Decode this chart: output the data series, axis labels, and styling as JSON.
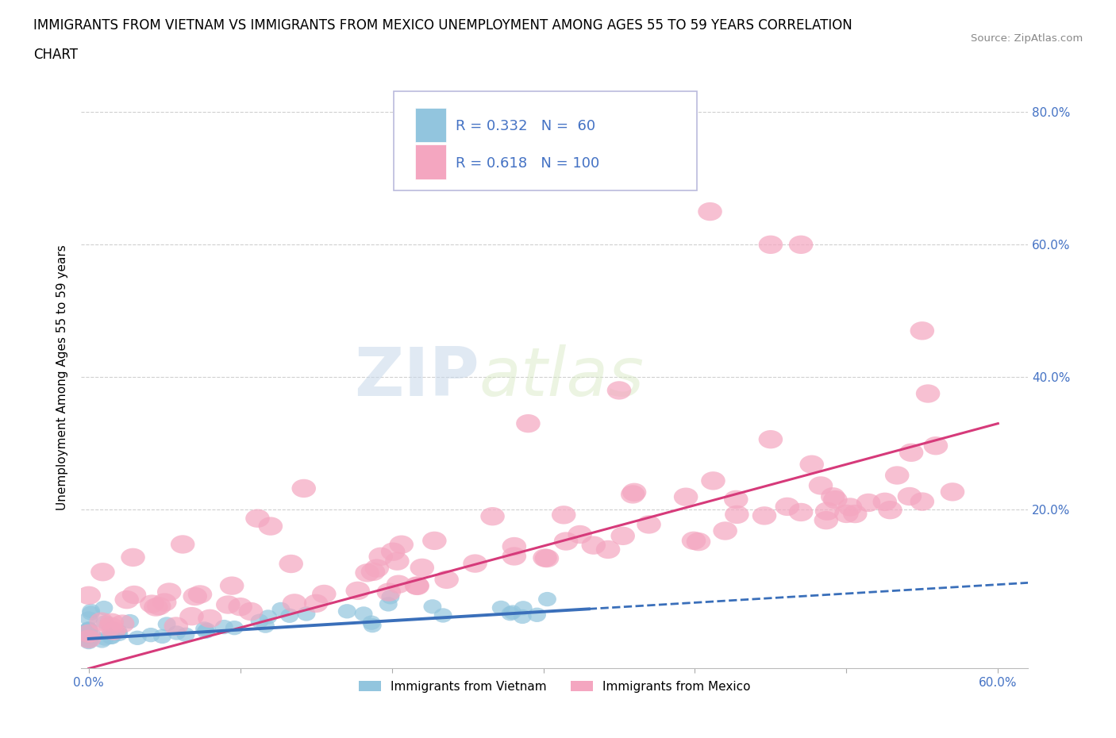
{
  "title_line1": "IMMIGRANTS FROM VIETNAM VS IMMIGRANTS FROM MEXICO UNEMPLOYMENT AMONG AGES 55 TO 59 YEARS CORRELATION",
  "title_line2": "CHART",
  "source": "Source: ZipAtlas.com",
  "ylabel": "Unemployment Among Ages 55 to 59 years",
  "xlim": [
    -0.005,
    0.62
  ],
  "ylim": [
    -0.04,
    0.84
  ],
  "ytick_vals": [
    0.0,
    0.2,
    0.4,
    0.6,
    0.8
  ],
  "ytick_labels": [
    "",
    "20.0%",
    "40.0%",
    "60.0%",
    "80.0%"
  ],
  "xtick_vals": [
    0.0,
    0.1,
    0.2,
    0.3,
    0.4,
    0.5,
    0.6
  ],
  "xtick_labels_show": [
    "0.0%",
    "",
    "",
    "",
    "",
    "",
    "60.0%"
  ],
  "vietnam_color": "#92c5de",
  "mexico_color": "#f4a6c0",
  "vietnam_trend_color": "#3a6fba",
  "mexico_trend_color": "#d63a7a",
  "vietnam_N": 60,
  "mexico_N": 100,
  "watermark_zip": "ZIP",
  "watermark_atlas": "atlas",
  "background_color": "#ffffff",
  "grid_color": "#d0d0d0",
  "tick_color": "#4472c4",
  "legend_text_color": "#4472c4",
  "title_fontsize": 12,
  "axis_label_fontsize": 11,
  "tick_fontsize": 11
}
